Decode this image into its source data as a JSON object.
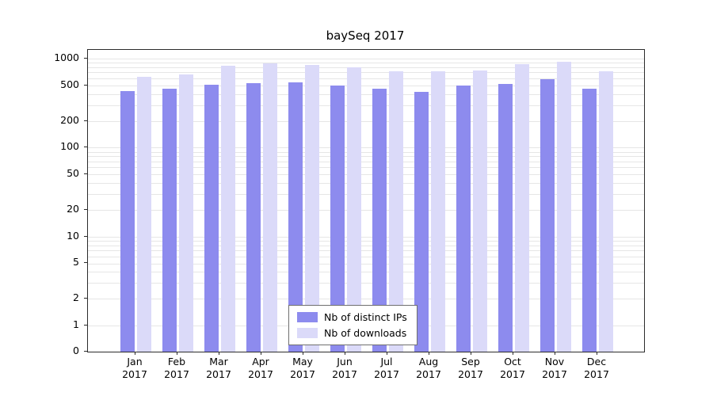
{
  "title": "baySeq 2017",
  "legend": {
    "items": [
      {
        "label": "Nb of distinct IPs",
        "color": "#8d8bee"
      },
      {
        "label": "Nb of downloads",
        "color": "#dbdaf9"
      }
    ]
  },
  "chart_data": {
    "type": "bar",
    "title": "baySeq 2017",
    "months": [
      "Jan",
      "Feb",
      "Mar",
      "Apr",
      "May",
      "Jun",
      "Jul",
      "Aug",
      "Sep",
      "Oct",
      "Nov",
      "Dec"
    ],
    "year_label": "2017",
    "categories": [
      "Jan 2017",
      "Feb 2017",
      "Mar 2017",
      "Apr 2017",
      "May 2017",
      "Jun 2017",
      "Jul 2017",
      "Aug 2017",
      "Sep 2017",
      "Oct 2017",
      "Nov 2017",
      "Dec 2017"
    ],
    "series": [
      {
        "name": "Nb of distinct IPs",
        "color": "#8d8bee",
        "values": [
          430,
          455,
          510,
          530,
          545,
          500,
          455,
          425,
          500,
          515,
          590,
          460
        ]
      },
      {
        "name": "Nb of downloads",
        "color": "#dbdaf9",
        "values": [
          630,
          660,
          830,
          890,
          850,
          800,
          720,
          720,
          730,
          870,
          915,
          720
        ]
      }
    ],
    "y_ticks": [
      0,
      1,
      2,
      5,
      10,
      20,
      50,
      100,
      200,
      500,
      1000
    ],
    "y_scale": "log",
    "ylim": [
      0,
      1000
    ],
    "grid": true,
    "legend_position": "inside-bottom-center"
  }
}
